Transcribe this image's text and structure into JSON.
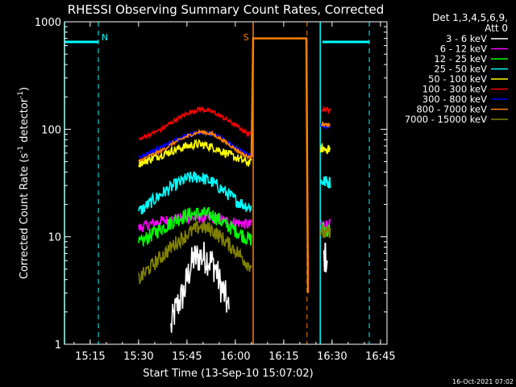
{
  "chart_data": {
    "type": "line",
    "title": "RHESSI Observing Summary Count Rates, Corrected",
    "xlabel": "Start Time (13-Sep-10 15:07:02)",
    "ylabel": "Corrected Count Rate (s⁻¹ detector⁻¹)",
    "ylabel_parts": {
      "main": "Corrected Count Rate (s",
      "sup1": "-1",
      "mid": " detector",
      "sup2": "-1",
      "end": ")"
    },
    "scale_y": "log",
    "xlim_minutes": [
      0,
      100
    ],
    "ylim": [
      1,
      1000
    ],
    "x_ticks": [
      {
        "m": 7.97,
        "label": "15:15"
      },
      {
        "m": 22.97,
        "label": "15:30"
      },
      {
        "m": 37.97,
        "label": "15:45"
      },
      {
        "m": 52.97,
        "label": "16:00"
      },
      {
        "m": 67.97,
        "label": "16:15"
      },
      {
        "m": 82.97,
        "label": "16:30"
      },
      {
        "m": 97.97,
        "label": "16:45"
      }
    ],
    "y_ticks": [
      {
        "v": 1,
        "label": "1"
      },
      {
        "v": 10,
        "label": "10"
      },
      {
        "v": 100,
        "label": "100"
      },
      {
        "v": 1000,
        "label": "1000"
      }
    ],
    "legend_header": [
      "Det 1,3,4,5,6,9,",
      "Att 0"
    ],
    "legend_position": "right",
    "series": [
      {
        "name": "3 - 6 keV",
        "color": "#ffffff",
        "pts": [
          [
            33,
            1.4
          ],
          [
            34,
            1.9
          ],
          [
            35,
            2.3
          ],
          [
            37,
            3.0
          ],
          [
            38,
            4.0
          ],
          [
            39,
            5.2
          ],
          [
            40,
            6.2
          ],
          [
            42,
            6.6
          ],
          [
            44,
            6.4
          ],
          [
            46,
            5.6
          ],
          [
            47,
            5.0
          ],
          [
            48,
            3.8
          ],
          [
            50,
            2.7
          ],
          [
            51,
            2.0
          ]
        ],
        "late": [
          [
            80.5,
            6.5
          ],
          [
            81.5,
            6.2
          ]
        ]
      },
      {
        "name": "6 - 12 keV",
        "color": "#ff00ff",
        "pts": [
          [
            23,
            12
          ],
          [
            26,
            13
          ],
          [
            30,
            14
          ],
          [
            34,
            14.5
          ],
          [
            38,
            15
          ],
          [
            42,
            15
          ],
          [
            46,
            14.8
          ],
          [
            50,
            14
          ],
          [
            54,
            13.5
          ],
          [
            57,
            13
          ],
          [
            58,
            13
          ]
        ],
        "late": [
          [
            79.5,
            13
          ],
          [
            82.5,
            13
          ]
        ]
      },
      {
        "name": "12 - 25 keV",
        "color": "#00ff00",
        "pts": [
          [
            23,
            8.5
          ],
          [
            26,
            10
          ],
          [
            30,
            12
          ],
          [
            34,
            14
          ],
          [
            38,
            16
          ],
          [
            42,
            16.5
          ],
          [
            46,
            15.8
          ],
          [
            50,
            13
          ],
          [
            54,
            11
          ],
          [
            57,
            9.5
          ],
          [
            58,
            9.5
          ]
        ],
        "late": [
          [
            79.5,
            12
          ],
          [
            82.5,
            11.5
          ]
        ]
      },
      {
        "name": "25 - 50 keV",
        "color": "#00ffff",
        "pts": [
          [
            23,
            17
          ],
          [
            26,
            20
          ],
          [
            30,
            25
          ],
          [
            34,
            30
          ],
          [
            38,
            35
          ],
          [
            42,
            36
          ],
          [
            46,
            32
          ],
          [
            50,
            26
          ],
          [
            54,
            21
          ],
          [
            57,
            19
          ],
          [
            58,
            19
          ]
        ],
        "late": [
          [
            79.5,
            33
          ],
          [
            82.5,
            32
          ]
        ]
      },
      {
        "name": "50 - 100 keV",
        "color": "#ffff00",
        "pts": [
          [
            23,
            48
          ],
          [
            26,
            52
          ],
          [
            30,
            58
          ],
          [
            34,
            64
          ],
          [
            38,
            70
          ],
          [
            42,
            73
          ],
          [
            46,
            68
          ],
          [
            50,
            60
          ],
          [
            54,
            53
          ],
          [
            57,
            49
          ],
          [
            58,
            50
          ]
        ],
        "late": [
          [
            79.5,
            66
          ],
          [
            82.5,
            65
          ]
        ]
      },
      {
        "name": "100 - 300 keV",
        "color": "#ff0000",
        "pts": [
          [
            23,
            80
          ],
          [
            26,
            88
          ],
          [
            30,
            100
          ],
          [
            34,
            120
          ],
          [
            38,
            140
          ],
          [
            42,
            155
          ],
          [
            46,
            145
          ],
          [
            50,
            125
          ],
          [
            54,
            104
          ],
          [
            57,
            90
          ],
          [
            58,
            92
          ]
        ],
        "late": [
          [
            79.5,
            155
          ],
          [
            82.5,
            150
          ]
        ]
      },
      {
        "name": "300 - 800 keV",
        "color": "#0000ff",
        "pts": [
          [
            23,
            55
          ],
          [
            26,
            60
          ],
          [
            30,
            68
          ],
          [
            34,
            78
          ],
          [
            38,
            88
          ],
          [
            42,
            95
          ],
          [
            46,
            90
          ],
          [
            50,
            78
          ],
          [
            54,
            65
          ],
          [
            57,
            58
          ],
          [
            58,
            60
          ]
        ],
        "late": [
          [
            79.5,
            108
          ],
          [
            82.5,
            105
          ]
        ]
      },
      {
        "name": "800 - 7000 keV",
        "color": "#ff8000",
        "pts": [
          [
            23,
            50
          ],
          [
            26,
            56
          ],
          [
            30,
            63
          ],
          [
            34,
            75
          ],
          [
            38,
            86
          ],
          [
            42,
            95
          ],
          [
            46,
            90
          ],
          [
            50,
            76
          ],
          [
            54,
            62
          ],
          [
            57,
            55
          ],
          [
            58,
            55
          ],
          [
            58.5,
            700
          ],
          [
            75,
            700
          ],
          [
            75.5,
            3
          ],
          [
            76,
            3
          ]
        ],
        "late": [
          [
            79.5,
            112
          ],
          [
            82.5,
            108
          ]
        ]
      },
      {
        "name": "7000 - 15000 keV",
        "color": "#808000",
        "pts": [
          [
            23,
            4.0
          ],
          [
            26,
            5.0
          ],
          [
            30,
            6.5
          ],
          [
            34,
            8.5
          ],
          [
            38,
            10.5
          ],
          [
            42,
            12.5
          ],
          [
            46,
            11.5
          ],
          [
            50,
            9.0
          ],
          [
            54,
            7.0
          ],
          [
            57,
            5.5
          ],
          [
            58,
            5.5
          ]
        ],
        "late": [
          [
            79.5,
            11
          ],
          [
            82.5,
            10.5
          ]
        ]
      }
    ],
    "saa_segments": [
      {
        "x": [
          0,
          10.5
        ],
        "y": 650
      },
      {
        "x": [
          80,
          94.5
        ],
        "y": 650
      }
    ],
    "vlines_solid": [
      {
        "m": 0,
        "color": "#00ffff"
      },
      {
        "m": 58.5,
        "color": "#ff8000"
      },
      {
        "m": 79.3,
        "color": "#00ffff"
      }
    ],
    "vlines_dashed": [
      {
        "m": 10.5,
        "color": "#00ffff"
      },
      {
        "m": 75.2,
        "color": "#ff8000"
      },
      {
        "m": 94.5,
        "color": "#00ffff"
      }
    ],
    "markers": [
      {
        "m": 12.5,
        "label": "N",
        "color": "#00ffff"
      },
      {
        "m": 56.3,
        "label": "S",
        "color": "#ff8000"
      }
    ]
  },
  "footer": {
    "timestamp": "16-Oct-2021 07:02"
  }
}
